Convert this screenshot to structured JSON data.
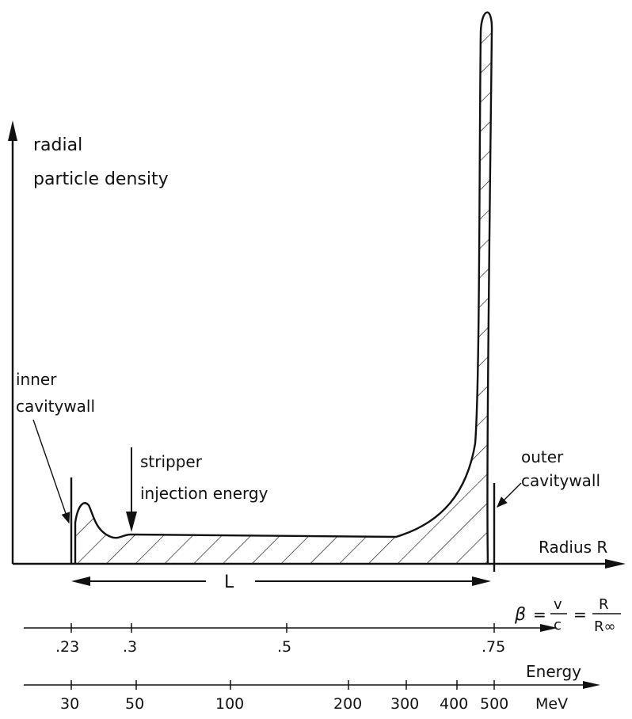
{
  "y_axis_label": {
    "line1": "radial",
    "line2": "particle density"
  },
  "x_axis_label": "Radius R",
  "annotations": {
    "inner_wall": {
      "line1": "inner",
      "line2": "cavitywall"
    },
    "stripper": {
      "line1": "stripper",
      "line2": "injection energy"
    },
    "outer_wall": {
      "line1": "outer",
      "line2": "cavitywall"
    },
    "length_label": "L"
  },
  "beta_scale": {
    "formula": {
      "beta": "β",
      "eq": "=",
      "v": "v",
      "c": "c",
      "R": "R",
      "Rinf": "R∞"
    },
    "ticks": [
      ".23",
      ".3",
      ".5",
      ".75"
    ]
  },
  "energy_scale": {
    "label": "Energy",
    "unit": "MeV",
    "ticks": [
      "30",
      "50",
      "100",
      "200",
      "300",
      "400",
      "500"
    ]
  },
  "colors": {
    "ink": "#111111",
    "background": "#ffffff"
  }
}
